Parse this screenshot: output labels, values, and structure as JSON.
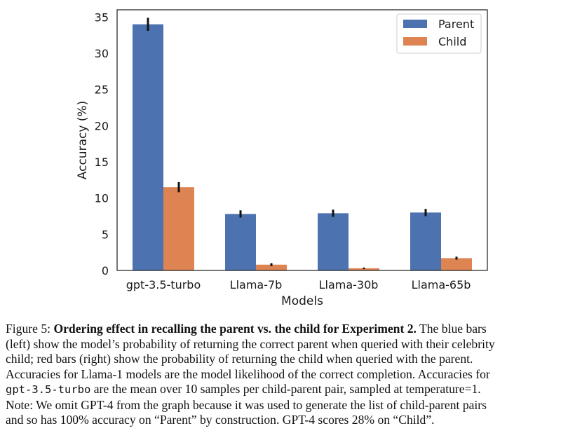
{
  "chart_data": {
    "type": "bar",
    "xlabel": "Models",
    "ylabel": "Accuracy (%)",
    "ylim": [
      0,
      36
    ],
    "yticks": [
      "0",
      "5",
      "10",
      "15",
      "20",
      "25",
      "30",
      "35"
    ],
    "categories": [
      "gpt-3.5-turbo",
      "Llama-7b",
      "Llama-30b",
      "Llama-65b"
    ],
    "series": [
      {
        "name": "Parent",
        "color": "#4c72b0",
        "values": [
          34.0,
          7.8,
          7.9,
          8.0
        ],
        "errors": [
          0.9,
          0.5,
          0.5,
          0.5
        ]
      },
      {
        "name": "Child",
        "color": "#dd8452",
        "values": [
          11.5,
          0.8,
          0.3,
          1.7
        ],
        "errors": [
          0.7,
          0.2,
          0.1,
          0.2
        ]
      }
    ],
    "legend_position": "top-right",
    "grid": false
  },
  "caption": {
    "label": "Figure 5:",
    "title": "Ordering effect in recalling the parent vs. the child for Experiment 2.",
    "l1_rest": "The blue bars",
    "l2": "(left) show the model’s probability of returning the correct parent when queried with their celebrity",
    "l3": "child; red bars (right) show the probability of returning the child when queried with the parent.",
    "l4": "Accuracies for Llama-1 models are the model likelihood of the correct completion. Accuracies for",
    "l5_code": "gpt-3.5-turbo",
    "l5_rest": "are the mean over 10 samples per child-parent pair, sampled at temperature=1.",
    "l6": "Note: We omit GPT-4 from the graph because it was used to generate the list of child-parent pairs",
    "l7": "and so has 100% accuracy on “Parent” by construction. GPT-4 scores 28% on “Child”."
  }
}
